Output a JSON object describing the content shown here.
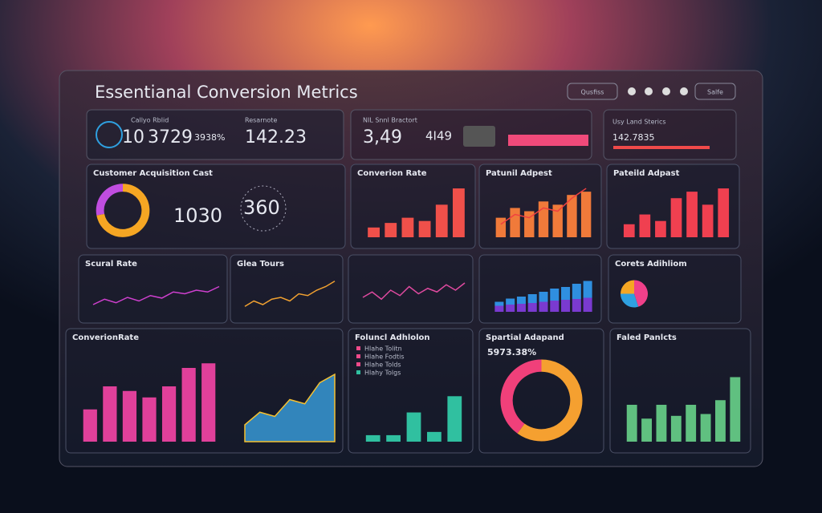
{
  "header": {
    "title": "Essentianal Conversion Metrics",
    "buttons": [
      "Qusfiss",
      "Salfe"
    ]
  },
  "kpis": [
    {
      "label": "Callyo Rblid",
      "figures": [
        "10",
        "3729",
        "3938%"
      ]
    },
    {
      "label": "Resarnote",
      "figures": [
        "142.23"
      ]
    },
    {
      "label": "NIL Snnl Bractort",
      "figures": [
        "3,49"
      ]
    },
    {
      "label": "4I49",
      "figures": []
    },
    {
      "label": "Usy Land Sterics",
      "figures": [
        "142.7835"
      ]
    }
  ],
  "chart_data": [
    {
      "type": "donut",
      "title": "Customer Acquisition Cast",
      "values": [
        72,
        28
      ],
      "colors": [
        "#f5a623",
        "#c04de0"
      ],
      "annotations": [
        "1030",
        "360"
      ]
    },
    {
      "type": "bar",
      "title": "Converion Rate",
      "values": [
        15,
        22,
        30,
        25,
        50,
        75
      ],
      "ylim": [
        0,
        80
      ],
      "color": "#f0504a"
    },
    {
      "type": "bar",
      "title": "Patunil Adpest",
      "values": [
        30,
        45,
        40,
        55,
        50,
        65,
        70
      ],
      "line": [
        20,
        35,
        30,
        45,
        40,
        60,
        75
      ],
      "ylim": [
        0,
        80
      ],
      "color": "#f07a3a"
    },
    {
      "type": "bar",
      "title": "Pateild Adpast",
      "values": [
        20,
        35,
        25,
        60,
        70,
        50,
        75
      ],
      "ylim": [
        0,
        80
      ],
      "color": "#f04050"
    },
    {
      "type": "line",
      "title": "Scural Rate",
      "values": [
        20,
        35,
        25,
        40,
        30,
        45,
        38,
        55,
        50,
        60,
        55,
        70
      ],
      "ylim": [
        0,
        100
      ],
      "color": "#d040d0"
    },
    {
      "type": "line",
      "title": "Glea Tours",
      "values": [
        15,
        30,
        20,
        35,
        40,
        30,
        50,
        45,
        60,
        70,
        85
      ],
      "ylim": [
        0,
        100
      ],
      "color": "#f0a030"
    },
    {
      "type": "line",
      "values": [
        40,
        55,
        35,
        60,
        45,
        70,
        50,
        65,
        55,
        75,
        60,
        80
      ],
      "ylim": [
        0,
        100
      ],
      "color": "#e04aa0"
    },
    {
      "type": "stacked",
      "series": [
        {
          "color": "#7a3ad0",
          "values": [
            15,
            18,
            20,
            22,
            25,
            28,
            30,
            32,
            35
          ]
        },
        {
          "color": "#2f8fe0",
          "values": [
            10,
            15,
            18,
            22,
            25,
            30,
            32,
            38,
            42
          ]
        }
      ],
      "ylim": [
        0,
        90
      ]
    },
    {
      "type": "pie",
      "title": "Corets Adihliom",
      "values": [
        45,
        30,
        25
      ],
      "colors": [
        "#f0408a",
        "#2fa0e0",
        "#f5a623"
      ]
    },
    {
      "type": "bar",
      "title": "ConverionRate",
      "values": [
        35,
        60,
        55,
        48,
        60,
        80,
        85
      ],
      "ylim": [
        0,
        100
      ],
      "color": "#e0409a"
    },
    {
      "type": "area",
      "values": [
        20,
        35,
        30,
        50,
        45,
        70,
        80
      ],
      "ylim": [
        0,
        100
      ],
      "color": "#3aa0e0"
    },
    {
      "type": "bar",
      "title": "Foluncl Adhlolon",
      "values": [
        10,
        10,
        45,
        15,
        70
      ],
      "ylim": [
        0,
        100
      ],
      "color": "#30c0a0",
      "legend": [
        {
          "label": "Hlahe Tolitn",
          "color": "#f04a8a"
        },
        {
          "label": "Hlahe Fodtis",
          "color": "#f04a8a"
        },
        {
          "label": "Hlahe Tolds",
          "color": "#f04a8a"
        },
        {
          "label": "Hlahy Tolgs",
          "color": "#30c0a0"
        }
      ]
    },
    {
      "type": "donut",
      "title": "Spartial Adapand",
      "values": [
        60,
        40
      ],
      "colors": [
        "#f5a030",
        "#f0407a"
      ],
      "annotations": [
        "5973.38%"
      ]
    },
    {
      "type": "bar",
      "title": "Faled Panlcts",
      "values": [
        40,
        25,
        40,
        28,
        40,
        30,
        45,
        70
      ],
      "ylim": [
        0,
        100
      ],
      "color": "#60c080"
    }
  ]
}
